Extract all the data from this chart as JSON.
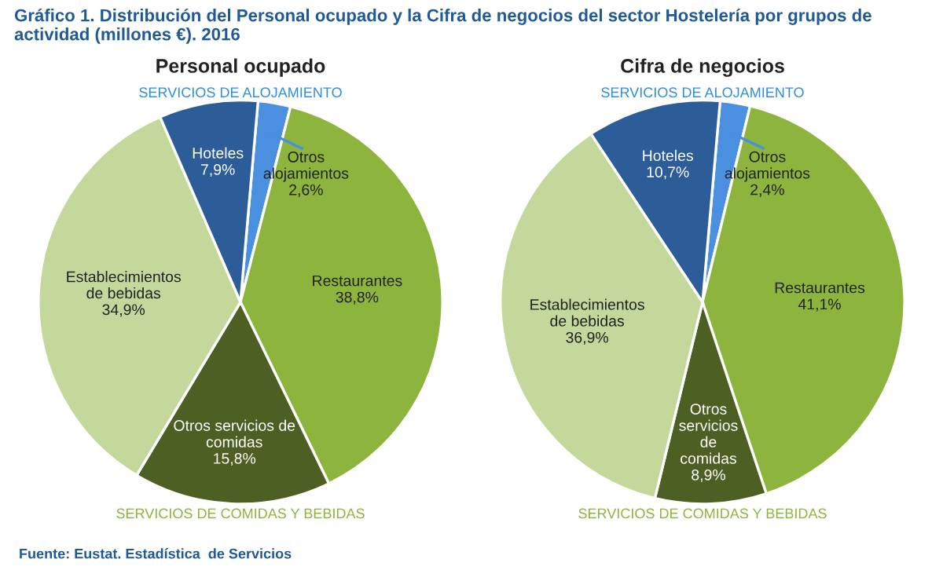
{
  "chart_data": [
    {
      "type": "pie",
      "title": "Personal ocupado",
      "categories": [
        "Otros\nalojamientos",
        "Restaurantes",
        "Otros servicios de\ncomidas",
        "Establecimientos\nde bebidas",
        "Hoteles"
      ],
      "values": [
        2.6,
        38.8,
        15.8,
        34.9,
        7.9
      ],
      "value_labels": [
        "2,6%",
        "38,8%",
        "15,8%",
        "34,9%",
        "7,9%"
      ],
      "colors": [
        "#4a8fe0",
        "#8db43c",
        "#4e5f24",
        "#c4d89c",
        "#2d5d98"
      ],
      "annotations": [
        "SERVICIOS DE ALOJAMIENTO",
        "SERVICIOS DE COMIDAS Y BEBIDAS",
        "Gráfico 1. Distribución del Personal ocupado y la Cifra de negocios del sector Hostelería por grupos de actividad (millones €). 2016",
        "Fuente: Eustat. Estadística  de Servicios"
      ]
    },
    {
      "type": "pie",
      "title": "Cifra de negocios",
      "categories": [
        "Otros\nalojamientos",
        "Restaurantes",
        "Otros\nservicios\nde\ncomidas",
        "Establecimientos\nde bebidas",
        "Hoteles"
      ],
      "values": [
        2.4,
        41.1,
        8.9,
        36.9,
        10.7
      ],
      "value_labels": [
        "2,4%",
        "41,1%",
        "8,9%",
        "36,9%",
        "10,7%"
      ],
      "colors": [
        "#4a8fe0",
        "#8db43c",
        "#4e5f24",
        "#c4d89c",
        "#2d5d98"
      ],
      "annotations": [
        "SERVICIOS DE ALOJAMIENTO",
        "SERVICIOS DE COMIDAS Y BEBIDAS"
      ]
    }
  ]
}
